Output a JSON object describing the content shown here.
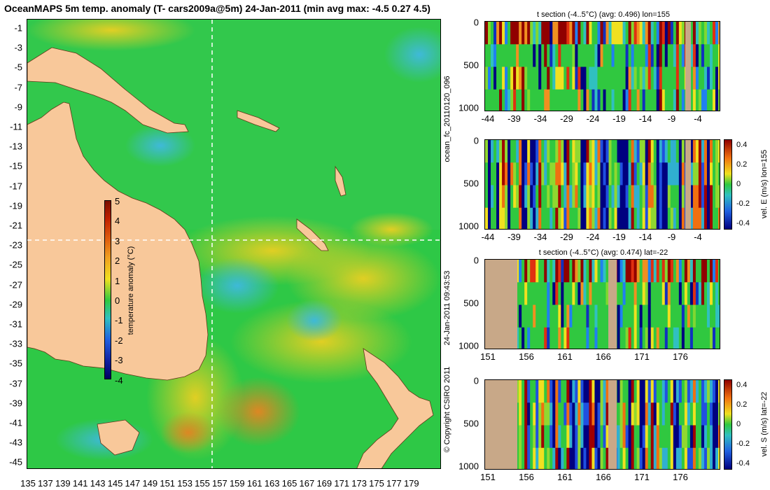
{
  "title": "OceanMAPS 5m temp. anomaly (T- cars2009a@5m) 24-Jan-2011 (min avg max: -4.5 0.27 4.5)",
  "map": {
    "lat_labels": [
      "-1",
      "-3",
      "-5",
      "-7",
      "-9",
      "-11",
      "-13",
      "-15",
      "-17",
      "-19",
      "-21",
      "-23",
      "-25",
      "-27",
      "-29",
      "-31",
      "-33",
      "-35",
      "-37",
      "-39",
      "-41",
      "-43",
      "-45"
    ],
    "lon_labels": [
      "135",
      "137",
      "139",
      "141",
      "143",
      "145",
      "147",
      "149",
      "151",
      "153",
      "155",
      "157",
      "159",
      "161",
      "163",
      "165",
      "167",
      "169",
      "171",
      "173",
      "175",
      "177",
      "179"
    ],
    "section_lon": 155,
    "section_lat": -22,
    "colorbar_title": "temperature anomaly (°C)",
    "colorbar_labels": [
      "5",
      "4",
      "3",
      "2",
      "1",
      "0",
      "-1",
      "-2",
      "-3",
      "-4"
    ],
    "colors": {
      "land": "#f8c89a",
      "ocean_base": "#2ec846",
      "warm": "#f0e020",
      "cool": "#38b8e0"
    }
  },
  "panels": [
    {
      "title": "t section (-4..5°C) (avg: 0.496) lon=155",
      "depth_labels": [
        "0",
        "500",
        "1000"
      ],
      "x_labels": [
        "-44",
        "-39",
        "-34",
        "-29",
        "-24",
        "-19",
        "-14",
        "-9",
        "-4"
      ]
    },
    {
      "title": "",
      "depth_labels": [
        "0",
        "500",
        "1000"
      ],
      "x_labels": [
        "-44",
        "-39",
        "-34",
        "-29",
        "-24",
        "-19",
        "-14",
        "-9",
        "-4"
      ],
      "colorbar_labels": [
        "0.4",
        "0.2",
        "0",
        "-0.2",
        "-0.4"
      ],
      "side_label": "vel. E (m/s) lon=155"
    },
    {
      "title": "t section (-4..5°C) (avg: 0.474) lat=-22",
      "depth_labels": [
        "0",
        "500",
        "1000"
      ],
      "x_labels": [
        "151",
        "156",
        "161",
        "166",
        "171",
        "176"
      ]
    },
    {
      "title": "",
      "depth_labels": [
        "0",
        "500",
        "1000"
      ],
      "x_labels": [
        "151",
        "156",
        "161",
        "166",
        "171",
        "176"
      ],
      "colorbar_labels": [
        "0.4",
        "0.2",
        "0",
        "-0.2",
        "-0.4"
      ],
      "side_label": "vel. S (m/s) lat=-22"
    }
  ],
  "side_texts": {
    "run_id": "ocean_fc_20110120_096",
    "timestamp": "24-Jan-2011 09:43:53",
    "copyright": "© Copyright CSIRO 2011"
  }
}
